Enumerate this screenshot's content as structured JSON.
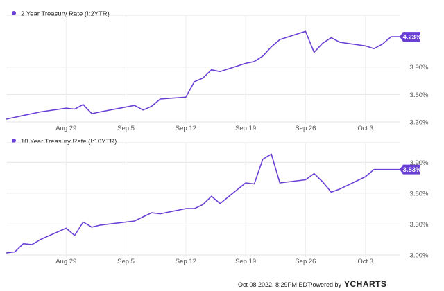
{
  "accent_color": "#6a3fd4",
  "chart_data": [
    {
      "type": "line",
      "legend_label": "2 Year Treasury Rate (I:2YTR)",
      "categories": [
        "Aug 29",
        "Sep 5",
        "Sep 12",
        "Sep 19",
        "Sep 26",
        "Oct 3"
      ],
      "yticks": [
        "3.30%",
        "3.60%",
        "3.90%"
      ],
      "ylim": [
        3.3,
        4.42
      ],
      "last_value_label": "4.23%",
      "series": [
        {
          "x": [
            "2022-08-22",
            "2022-08-23",
            "2022-08-24",
            "2022-08-25",
            "2022-08-26",
            "2022-08-29",
            "2022-08-30",
            "2022-08-31",
            "2022-09-01",
            "2022-09-02",
            "2022-09-06",
            "2022-09-07",
            "2022-09-08",
            "2022-09-09",
            "2022-09-12",
            "2022-09-13",
            "2022-09-14",
            "2022-09-15",
            "2022-09-16",
            "2022-09-19",
            "2022-09-20",
            "2022-09-21",
            "2022-09-22",
            "2022-09-23",
            "2022-09-26",
            "2022-09-27",
            "2022-09-28",
            "2022-09-29",
            "2022-09-30",
            "2022-10-03",
            "2022-10-04",
            "2022-10-05",
            "2022-10-06",
            "2022-10-07"
          ],
          "values": [
            3.33,
            3.35,
            3.37,
            3.39,
            3.41,
            3.45,
            3.44,
            3.49,
            3.39,
            3.41,
            3.48,
            3.43,
            3.47,
            3.55,
            3.57,
            3.74,
            3.78,
            3.87,
            3.85,
            3.94,
            3.96,
            4.02,
            4.12,
            4.2,
            4.29,
            4.06,
            4.16,
            4.22,
            4.17,
            4.13,
            4.1,
            4.15,
            4.23,
            4.23
          ]
        }
      ]
    },
    {
      "type": "line",
      "legend_label": "10 Year Treasury Rate (I:10YTR)",
      "categories": [
        "Aug 29",
        "Sep 5",
        "Sep 12",
        "Sep 19",
        "Sep 26",
        "Oct 3"
      ],
      "yticks": [
        "3.00%",
        "3.30%",
        "3.60%",
        "3.90%"
      ],
      "ylim": [
        3.0,
        4.05
      ],
      "last_value_label": "3.83%",
      "series": [
        {
          "x": [
            "2022-08-22",
            "2022-08-23",
            "2022-08-24",
            "2022-08-25",
            "2022-08-26",
            "2022-08-29",
            "2022-08-30",
            "2022-08-31",
            "2022-09-01",
            "2022-09-02",
            "2022-09-06",
            "2022-09-07",
            "2022-09-08",
            "2022-09-09",
            "2022-09-12",
            "2022-09-13",
            "2022-09-14",
            "2022-09-15",
            "2022-09-16",
            "2022-09-19",
            "2022-09-20",
            "2022-09-21",
            "2022-09-22",
            "2022-09-23",
            "2022-09-26",
            "2022-09-27",
            "2022-09-28",
            "2022-09-29",
            "2022-09-30",
            "2022-10-03",
            "2022-10-04",
            "2022-10-05",
            "2022-10-06",
            "2022-10-07"
          ],
          "values": [
            3.02,
            3.03,
            3.11,
            3.1,
            3.15,
            3.26,
            3.19,
            3.32,
            3.27,
            3.29,
            3.33,
            3.37,
            3.41,
            3.4,
            3.45,
            3.45,
            3.49,
            3.57,
            3.5,
            3.7,
            3.69,
            3.93,
            3.98,
            3.7,
            3.73,
            3.79,
            3.71,
            3.61,
            3.64,
            3.76,
            3.83,
            3.83,
            3.83,
            3.83
          ]
        }
      ]
    }
  ],
  "footer": {
    "timestamp": "Oct 08 2022, 8:29PM EDT.",
    "powered_by": "Powered by",
    "brand": "YCHARTS"
  }
}
